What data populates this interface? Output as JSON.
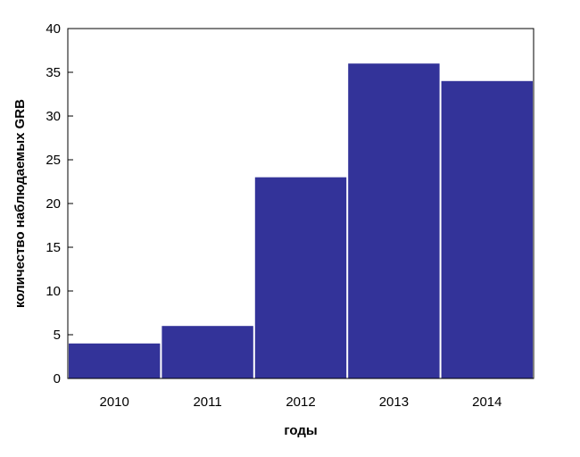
{
  "chart_data": {
    "type": "bar",
    "categories": [
      "2010",
      "2011",
      "2012",
      "2013",
      "2014"
    ],
    "values": [
      4,
      6,
      23,
      36,
      34
    ],
    "title": "",
    "xlabel": "годы",
    "ylabel": "количество наблюдаемых GRB",
    "ylim": [
      0,
      40
    ],
    "yticks": [
      0,
      5,
      10,
      15,
      20,
      25,
      30,
      35,
      40
    ],
    "grid": false,
    "legend": "none",
    "colors": {
      "bar": "#333399",
      "axis": "#000000",
      "background": "#ffffff"
    }
  }
}
